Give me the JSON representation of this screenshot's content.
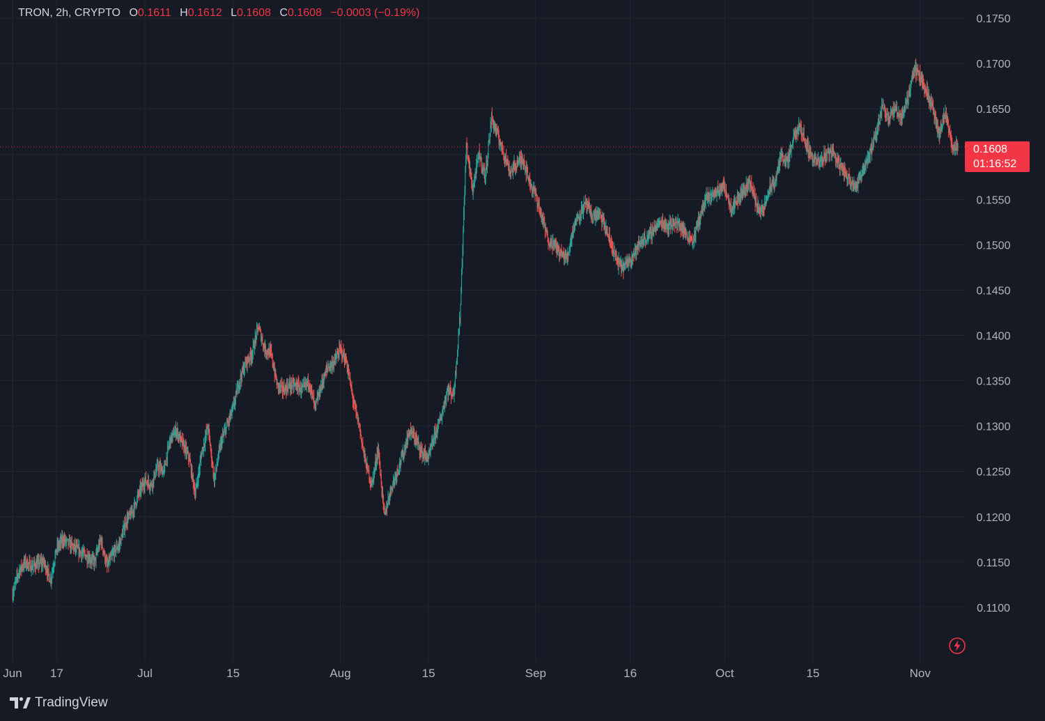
{
  "legend": {
    "symbol": "TRON, 2h, CRYPTO",
    "open_label": "O",
    "open": "0.1611",
    "high_label": "H",
    "high": "0.1612",
    "low_label": "L",
    "low": "0.1608",
    "close_label": "C",
    "close": "0.1608",
    "change": "−0.0003 (−0.19%)"
  },
  "price_tag": {
    "price": "0.1608",
    "countdown": "01:16:52"
  },
  "branding": {
    "name": "TradingView",
    "logo_icon": "tradingview-logo-icon"
  },
  "colors": {
    "up": "#26a69a",
    "down": "#ef5350",
    "accent": "#f23645",
    "background": "#161a25",
    "grid": "#232733"
  },
  "chart_data": {
    "type": "candlestick",
    "symbol": "TRON",
    "interval": "2h",
    "y_ticks": [
      "0.1750",
      "0.1700",
      "0.1650",
      "0.1600",
      "0.1550",
      "0.1500",
      "0.1450",
      "0.1400",
      "0.1350",
      "0.1300",
      "0.1250",
      "0.1200",
      "0.1150",
      "0.1100"
    ],
    "ylim": [
      0.104,
      0.177
    ],
    "x_ticks": [
      "Jun",
      "17",
      "Jul",
      "15",
      "Aug",
      "15",
      "Sep",
      "16",
      "Oct",
      "15",
      "Nov"
    ],
    "x_tick_dates": [
      "2024-06-10",
      "2024-06-17",
      "2024-07-01",
      "2024-07-15",
      "2024-08-01",
      "2024-08-15",
      "2024-09-01",
      "2024-09-16",
      "2024-10-01",
      "2024-10-15",
      "2024-11-01"
    ],
    "xlim": [
      "2024-06-10",
      "2024-11-07"
    ],
    "last_price": 0.1608,
    "current_price_line": 0.1608,
    "price_path": [
      [
        "2024-06-10",
        0.1115
      ],
      [
        "2024-06-11",
        0.114
      ],
      [
        "2024-06-12",
        0.115
      ],
      [
        "2024-06-13",
        0.1145
      ],
      [
        "2024-06-14",
        0.1148
      ],
      [
        "2024-06-15",
        0.115
      ],
      [
        "2024-06-16",
        0.113
      ],
      [
        "2024-06-17",
        0.1165
      ],
      [
        "2024-06-18",
        0.1175
      ],
      [
        "2024-06-19",
        0.117
      ],
      [
        "2024-06-20",
        0.1165
      ],
      [
        "2024-06-21",
        0.116
      ],
      [
        "2024-06-22",
        0.1155
      ],
      [
        "2024-06-23",
        0.115
      ],
      [
        "2024-06-24",
        0.1175
      ],
      [
        "2024-06-25",
        0.1145
      ],
      [
        "2024-06-26",
        0.116
      ],
      [
        "2024-06-27",
        0.117
      ],
      [
        "2024-06-28",
        0.1195
      ],
      [
        "2024-06-29",
        0.1205
      ],
      [
        "2024-06-30",
        0.1225
      ],
      [
        "2024-07-01",
        0.124
      ],
      [
        "2024-07-02",
        0.1235
      ],
      [
        "2024-07-03",
        0.1255
      ],
      [
        "2024-07-04",
        0.125
      ],
      [
        "2024-07-05",
        0.1285
      ],
      [
        "2024-07-06",
        0.1295
      ],
      [
        "2024-07-07",
        0.128
      ],
      [
        "2024-07-08",
        0.1265
      ],
      [
        "2024-07-09",
        0.1225
      ],
      [
        "2024-07-10",
        0.127
      ],
      [
        "2024-07-11",
        0.13
      ],
      [
        "2024-07-12",
        0.124
      ],
      [
        "2024-07-13",
        0.128
      ],
      [
        "2024-07-14",
        0.13
      ],
      [
        "2024-07-15",
        0.132
      ],
      [
        "2024-07-16",
        0.135
      ],
      [
        "2024-07-17",
        0.137
      ],
      [
        "2024-07-18",
        0.138
      ],
      [
        "2024-07-19",
        0.141
      ],
      [
        "2024-07-20",
        0.1385
      ],
      [
        "2024-07-21",
        0.138
      ],
      [
        "2024-07-22",
        0.1345
      ],
      [
        "2024-07-23",
        0.134
      ],
      [
        "2024-07-24",
        0.1345
      ],
      [
        "2024-07-25",
        0.1345
      ],
      [
        "2024-07-26",
        0.134
      ],
      [
        "2024-07-27",
        0.135
      ],
      [
        "2024-07-28",
        0.132
      ],
      [
        "2024-07-29",
        0.1345
      ],
      [
        "2024-07-30",
        0.1365
      ],
      [
        "2024-07-31",
        0.137
      ],
      [
        "2024-08-01",
        0.1385
      ],
      [
        "2024-08-02",
        0.137
      ],
      [
        "2024-08-03",
        0.133
      ],
      [
        "2024-08-04",
        0.13
      ],
      [
        "2024-08-05",
        0.126
      ],
      [
        "2024-08-06",
        0.1235
      ],
      [
        "2024-08-07",
        0.1275
      ],
      [
        "2024-08-08",
        0.12
      ],
      [
        "2024-08-09",
        0.123
      ],
      [
        "2024-08-10",
        0.125
      ],
      [
        "2024-08-11",
        0.127
      ],
      [
        "2024-08-12",
        0.1295
      ],
      [
        "2024-08-13",
        0.1285
      ],
      [
        "2024-08-14",
        0.127
      ],
      [
        "2024-08-15",
        0.1265
      ],
      [
        "2024-08-16",
        0.129
      ],
      [
        "2024-08-17",
        0.131
      ],
      [
        "2024-08-18",
        0.134
      ],
      [
        "2024-08-19",
        0.1335
      ],
      [
        "2024-08-20",
        0.142
      ],
      [
        "2024-08-21",
        0.161
      ],
      [
        "2024-08-22",
        0.156
      ],
      [
        "2024-08-23",
        0.16
      ],
      [
        "2024-08-24",
        0.1575
      ],
      [
        "2024-08-25",
        0.164
      ],
      [
        "2024-08-26",
        0.162
      ],
      [
        "2024-08-27",
        0.16
      ],
      [
        "2024-08-28",
        0.158
      ],
      [
        "2024-08-29",
        0.159
      ],
      [
        "2024-08-30",
        0.1595
      ],
      [
        "2024-08-31",
        0.157
      ],
      [
        "2024-09-01",
        0.1555
      ],
      [
        "2024-09-02",
        0.153
      ],
      [
        "2024-09-03",
        0.1505
      ],
      [
        "2024-09-04",
        0.15
      ],
      [
        "2024-09-05",
        0.149
      ],
      [
        "2024-09-06",
        0.1485
      ],
      [
        "2024-09-07",
        0.152
      ],
      [
        "2024-09-08",
        0.1535
      ],
      [
        "2024-09-09",
        0.1545
      ],
      [
        "2024-09-10",
        0.153
      ],
      [
        "2024-09-11",
        0.1535
      ],
      [
        "2024-09-12",
        0.152
      ],
      [
        "2024-09-13",
        0.15
      ],
      [
        "2024-09-14",
        0.148
      ],
      [
        "2024-09-15",
        0.1475
      ],
      [
        "2024-09-16",
        0.1485
      ],
      [
        "2024-09-17",
        0.1495
      ],
      [
        "2024-09-18",
        0.1505
      ],
      [
        "2024-09-19",
        0.151
      ],
      [
        "2024-09-20",
        0.152
      ],
      [
        "2024-09-21",
        0.1525
      ],
      [
        "2024-09-22",
        0.152
      ],
      [
        "2024-09-23",
        0.1525
      ],
      [
        "2024-09-24",
        0.152
      ],
      [
        "2024-09-25",
        0.151
      ],
      [
        "2024-09-26",
        0.1505
      ],
      [
        "2024-09-27",
        0.153
      ],
      [
        "2024-09-28",
        0.155
      ],
      [
        "2024-09-29",
        0.1555
      ],
      [
        "2024-09-30",
        0.156
      ],
      [
        "2024-10-01",
        0.1565
      ],
      [
        "2024-10-02",
        0.154
      ],
      [
        "2024-10-03",
        0.155
      ],
      [
        "2024-10-04",
        0.156
      ],
      [
        "2024-10-05",
        0.157
      ],
      [
        "2024-10-06",
        0.1545
      ],
      [
        "2024-10-07",
        0.1535
      ],
      [
        "2024-10-08",
        0.156
      ],
      [
        "2024-10-09",
        0.157
      ],
      [
        "2024-10-10",
        0.16
      ],
      [
        "2024-10-11",
        0.159
      ],
      [
        "2024-10-12",
        0.162
      ],
      [
        "2024-10-13",
        0.163
      ],
      [
        "2024-10-14",
        0.161
      ],
      [
        "2024-10-15",
        0.1595
      ],
      [
        "2024-10-16",
        0.159
      ],
      [
        "2024-10-17",
        0.16
      ],
      [
        "2024-10-18",
        0.1605
      ],
      [
        "2024-10-19",
        0.159
      ],
      [
        "2024-10-20",
        0.158
      ],
      [
        "2024-10-21",
        0.157
      ],
      [
        "2024-10-22",
        0.1565
      ],
      [
        "2024-10-23",
        0.1585
      ],
      [
        "2024-10-24",
        0.16
      ],
      [
        "2024-10-25",
        0.162
      ],
      [
        "2024-10-26",
        0.1655
      ],
      [
        "2024-10-27",
        0.164
      ],
      [
        "2024-10-28",
        0.165
      ],
      [
        "2024-10-29",
        0.164
      ],
      [
        "2024-10-30",
        0.166
      ],
      [
        "2024-10-31",
        0.1695
      ],
      [
        "2024-11-01",
        0.1685
      ],
      [
        "2024-11-02",
        0.167
      ],
      [
        "2024-11-03",
        0.165
      ],
      [
        "2024-11-04",
        0.162
      ],
      [
        "2024-11-05",
        0.1645
      ],
      [
        "2024-11-06",
        0.161
      ],
      [
        "2024-11-07",
        0.1608
      ]
    ]
  }
}
